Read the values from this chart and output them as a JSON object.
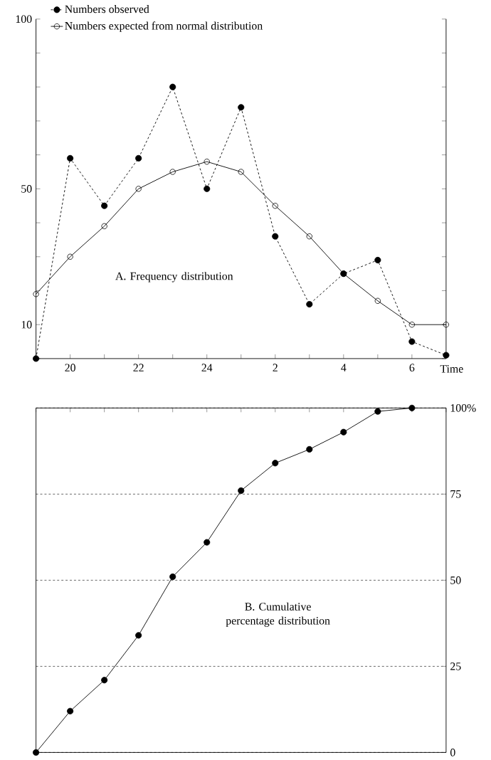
{
  "chart_data": [
    {
      "type": "line",
      "categories": [
        null,
        "20",
        null,
        "22",
        null,
        "24",
        null,
        "2",
        null,
        "4",
        null,
        "6",
        null
      ],
      "series": [
        {
          "name": "Numbers observed",
          "color": "#000000",
          "line_style": "dashed",
          "marker": "circle",
          "values": [
            0,
            59,
            45,
            59,
            80,
            50,
            74,
            36,
            16,
            25,
            29,
            5,
            1
          ]
        },
        {
          "name": "Numbers expected from normal distribution",
          "color": "#000000",
          "line_style": "solid",
          "marker": "circle",
          "values": [
            19,
            30,
            39,
            50,
            55,
            58,
            55,
            45,
            36,
            25,
            17,
            10,
            10
          ]
        }
      ],
      "xlabel": "Time",
      "ylim": [
        0,
        100
      ],
      "yticks": [
        {
          "value": 0,
          "label": null
        },
        10,
        {
          "value": 20,
          "label": null
        },
        {
          "value": 30,
          "label": null
        },
        {
          "value": 40,
          "label": null
        },
        50,
        {
          "value": 60,
          "label": null
        },
        {
          "value": 70,
          "label": null
        },
        {
          "value": 80,
          "label": null
        },
        {
          "value": 90,
          "label": null
        },
        100
      ],
      "legend": "top left",
      "annotations": [
        "A. Frequency distribution"
      ]
    },
    {
      "type": "line",
      "categories": [
        null,
        null,
        null,
        null,
        null,
        null,
        null,
        null,
        null,
        null,
        null,
        null,
        null
      ],
      "values": [
        0,
        12,
        21,
        34,
        51,
        61,
        76,
        84,
        88,
        93,
        99,
        100,
        null
      ],
      "color": "#000000",
      "marker": "circle",
      "line_style": "solid",
      "ylim": [
        0,
        100
      ],
      "yticks": [
        0,
        25,
        50,
        75,
        {
          "value": 100,
          "label": "100%"
        }
      ],
      "grid": "y",
      "tick_labels": "y",
      "annotations": [
        "B. Cumulative percentage distribution"
      ]
    }
  ]
}
